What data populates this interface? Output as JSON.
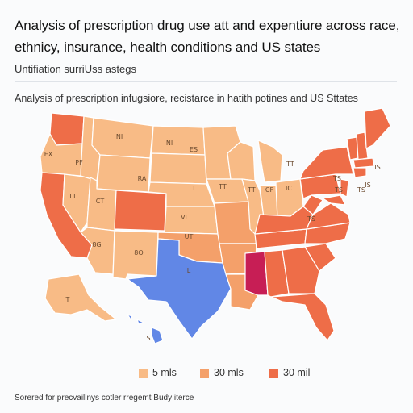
{
  "header": {
    "title": "Analysis of prescription drug use att and expentiure across race, ethnicy, insurance, health conditions and US states",
    "subtitle": "Untifiation surriUss astegs",
    "caption": "Analysis of prescription infugsiore, recistarce in hatith potines and US Sttates"
  },
  "colors": {
    "light": "#f8bb86",
    "mid": "#f4a06a",
    "dark": "#ee6d48",
    "texas": "#6187e6",
    "mississippi": "#c71e55",
    "outline": "#ffffff"
  },
  "map_labels": [
    "EX",
    "PF",
    "NI",
    "NI",
    "ES",
    "TT",
    "CT",
    "RA",
    "TT",
    "TT",
    "TT",
    "CF",
    "IC",
    "TT",
    "VI",
    "UT",
    "TS",
    "8G",
    "8O",
    "L",
    "TS",
    "T",
    "S",
    "TS",
    "TS",
    "IS",
    "IS"
  ],
  "legend": [
    {
      "label": "5 mls",
      "color": "#f8bb86"
    },
    {
      "label": "30 mls",
      "color": "#f4a06a"
    },
    {
      "label": "30 mil",
      "color": "#ee6d48"
    }
  ],
  "footer": "Sorered for precvaillnys cotler rregemt Budy iterce"
}
